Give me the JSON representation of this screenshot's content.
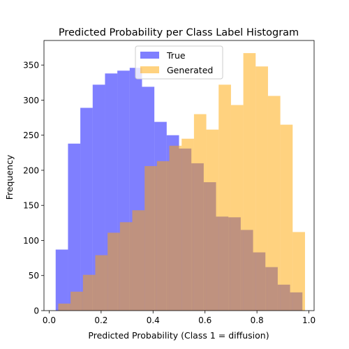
{
  "chart_data": {
    "type": "bar",
    "subtype": "overlapping-histogram",
    "title": "Predicted Probability per Class Label Histogram",
    "xlabel": "Predicted Probability (Class 1 = diffusion)",
    "ylabel": "Frequency",
    "xlim": [
      -0.02,
      1.02
    ],
    "ylim": [
      0,
      385
    ],
    "x_ticks": [
      0.0,
      0.2,
      0.4,
      0.6,
      0.8,
      1.0
    ],
    "x_tick_labels": [
      "0.0",
      "0.2",
      "0.4",
      "0.6",
      "0.8",
      "1.0"
    ],
    "y_ticks": [
      0,
      50,
      100,
      150,
      200,
      250,
      300,
      350
    ],
    "y_tick_labels": [
      "0",
      "50",
      "100",
      "150",
      "200",
      "250",
      "300",
      "350"
    ],
    "grid": false,
    "legend_position": "upper-center",
    "series": [
      {
        "name": "True",
        "color": "#0000ff",
        "alpha": 0.5,
        "bin_edges": [
          0.025,
          0.0725,
          0.12,
          0.1675,
          0.215,
          0.2625,
          0.31,
          0.3575,
          0.405,
          0.4525,
          0.5,
          0.5475,
          0.595,
          0.6425,
          0.69,
          0.7375,
          0.785,
          0.8325,
          0.88,
          0.9275,
          0.975
        ],
        "values": [
          87,
          238,
          289,
          322,
          338,
          342,
          346,
          319,
          269,
          250,
          231,
          210,
          183,
          134,
          133,
          115,
          83,
          62,
          37,
          26
        ]
      },
      {
        "name": "Generated",
        "color": "#ffa500",
        "alpha": 0.5,
        "bin_edges": [
          0.035,
          0.0825,
          0.13,
          0.1775,
          0.225,
          0.2725,
          0.32,
          0.3675,
          0.415,
          0.4625,
          0.51,
          0.5575,
          0.605,
          0.6525,
          0.7,
          0.7475,
          0.795,
          0.8425,
          0.89,
          0.9375,
          0.985
        ],
        "values": [
          10,
          27,
          51,
          79,
          111,
          126,
          143,
          206,
          213,
          235,
          245,
          280,
          258,
          322,
          293,
          367,
          348,
          306,
          265,
          112
        ]
      }
    ]
  }
}
